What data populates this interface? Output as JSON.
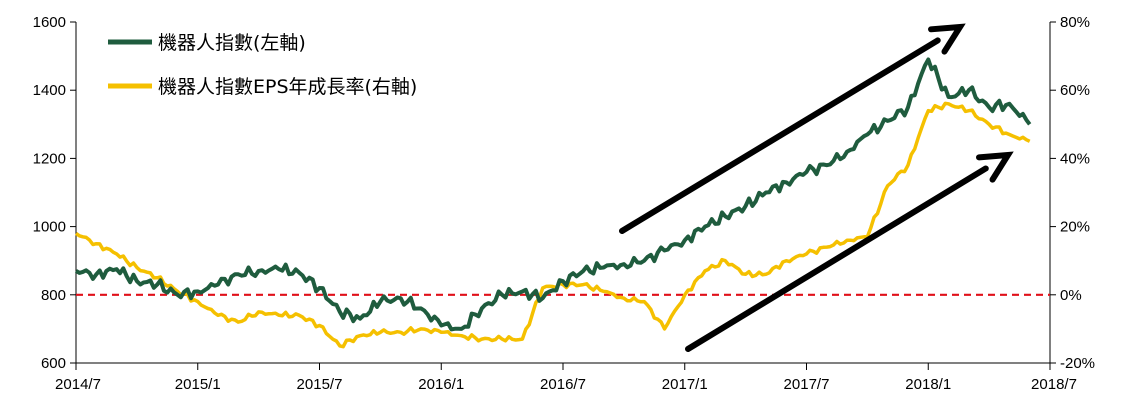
{
  "chart_data": {
    "type": "line",
    "x_ticks": [
      "2014/7",
      "2015/1",
      "2015/7",
      "2016/1",
      "2016/7",
      "2017/1",
      "2017/7",
      "2018/1",
      "2018/7"
    ],
    "y_left_ticks": [
      "600",
      "800",
      "1000",
      "1200",
      "1400",
      "1600"
    ],
    "y_right_ticks": [
      "-20%",
      "0%",
      "20%",
      "40%",
      "60%",
      "80%"
    ],
    "ylim_left": [
      600,
      1600
    ],
    "ylim_right": [
      -20,
      80
    ],
    "xlim": [
      "2014/7",
      "2018/7"
    ],
    "grid": false,
    "legend_position": "top-left",
    "reference_line": {
      "axis": "right",
      "value": 0,
      "color": "#e0101a",
      "style": "dashed"
    },
    "series": [
      {
        "name": "機器人指數(左軸)",
        "axis": "left",
        "color": "#1f5c3e",
        "points": [
          [
            "2014/07",
            870
          ],
          [
            "2014/08",
            860
          ],
          [
            "2014/09",
            875
          ],
          [
            "2014/10",
            840
          ],
          [
            "2014/11",
            830
          ],
          [
            "2014/12",
            800
          ],
          [
            "2015/01",
            810
          ],
          [
            "2015/02",
            830
          ],
          [
            "2015/03",
            860
          ],
          [
            "2015/04",
            870
          ],
          [
            "2015/05",
            875
          ],
          [
            "2015/06",
            865
          ],
          [
            "2015/07",
            820
          ],
          [
            "2015/08",
            750
          ],
          [
            "2015/09",
            730
          ],
          [
            "2015/10",
            780
          ],
          [
            "2015/11",
            790
          ],
          [
            "2015/12",
            760
          ],
          [
            "2016/01",
            710
          ],
          [
            "2016/02",
            700
          ],
          [
            "2016/03",
            760
          ],
          [
            "2016/04",
            800
          ],
          [
            "2016/05",
            810
          ],
          [
            "2016/06",
            790
          ],
          [
            "2016/07",
            840
          ],
          [
            "2016/08",
            870
          ],
          [
            "2016/09",
            880
          ],
          [
            "2016/10",
            890
          ],
          [
            "2016/11",
            900
          ],
          [
            "2016/12",
            930
          ],
          [
            "2017/01",
            960
          ],
          [
            "2017/02",
            1000
          ],
          [
            "2017/03",
            1030
          ],
          [
            "2017/04",
            1060
          ],
          [
            "2017/05",
            1100
          ],
          [
            "2017/06",
            1130
          ],
          [
            "2017/07",
            1160
          ],
          [
            "2017/08",
            1180
          ],
          [
            "2017/09",
            1220
          ],
          [
            "2017/10",
            1270
          ],
          [
            "2017/11",
            1310
          ],
          [
            "2017/12",
            1350
          ],
          [
            "2018/01",
            1490
          ],
          [
            "2018/02",
            1380
          ],
          [
            "2018/03",
            1400
          ],
          [
            "2018/04",
            1350
          ],
          [
            "2018/05",
            1360
          ],
          [
            "2018/06",
            1300
          ]
        ]
      },
      {
        "name": "機器人指數EPS年成長率(右軸)",
        "axis": "right",
        "color": "#f5c000",
        "points": [
          [
            "2014/07",
            18
          ],
          [
            "2014/08",
            15
          ],
          [
            "2014/09",
            12
          ],
          [
            "2014/10",
            8
          ],
          [
            "2014/11",
            5
          ],
          [
            "2014/12",
            1
          ],
          [
            "2015/01",
            -2
          ],
          [
            "2015/02",
            -6
          ],
          [
            "2015/03",
            -8
          ],
          [
            "2015/04",
            -5
          ],
          [
            "2015/05",
            -6
          ],
          [
            "2015/06",
            -6
          ],
          [
            "2015/07",
            -9
          ],
          [
            "2015/08",
            -15
          ],
          [
            "2015/09",
            -12
          ],
          [
            "2015/10",
            -11
          ],
          [
            "2015/11",
            -11
          ],
          [
            "2015/12",
            -10
          ],
          [
            "2016/01",
            -11
          ],
          [
            "2016/02",
            -12
          ],
          [
            "2016/03",
            -13
          ],
          [
            "2016/04",
            -13
          ],
          [
            "2016/05",
            -13
          ],
          [
            "2016/06",
            2
          ],
          [
            "2016/07",
            3
          ],
          [
            "2016/08",
            3
          ],
          [
            "2016/09",
            1
          ],
          [
            "2016/10",
            -1
          ],
          [
            "2016/11",
            -2
          ],
          [
            "2016/12",
            -10
          ],
          [
            "2017/01",
            0
          ],
          [
            "2017/02",
            7
          ],
          [
            "2017/03",
            10
          ],
          [
            "2017/04",
            6
          ],
          [
            "2017/05",
            6
          ],
          [
            "2017/06",
            10
          ],
          [
            "2017/07",
            12
          ],
          [
            "2017/08",
            14
          ],
          [
            "2017/09",
            16
          ],
          [
            "2017/10",
            17
          ],
          [
            "2017/11",
            32
          ],
          [
            "2017/12",
            38
          ],
          [
            "2018/01",
            54
          ],
          [
            "2018/02",
            56
          ],
          [
            "2018/03",
            54
          ],
          [
            "2018/04",
            50
          ],
          [
            "2018/05",
            47
          ],
          [
            "2018/06",
            45
          ]
        ]
      }
    ],
    "annotations": [
      {
        "type": "arrow",
        "description": "upward trend arrow above index line"
      },
      {
        "type": "arrow",
        "description": "upward trend arrow below EPS growth line"
      }
    ]
  }
}
